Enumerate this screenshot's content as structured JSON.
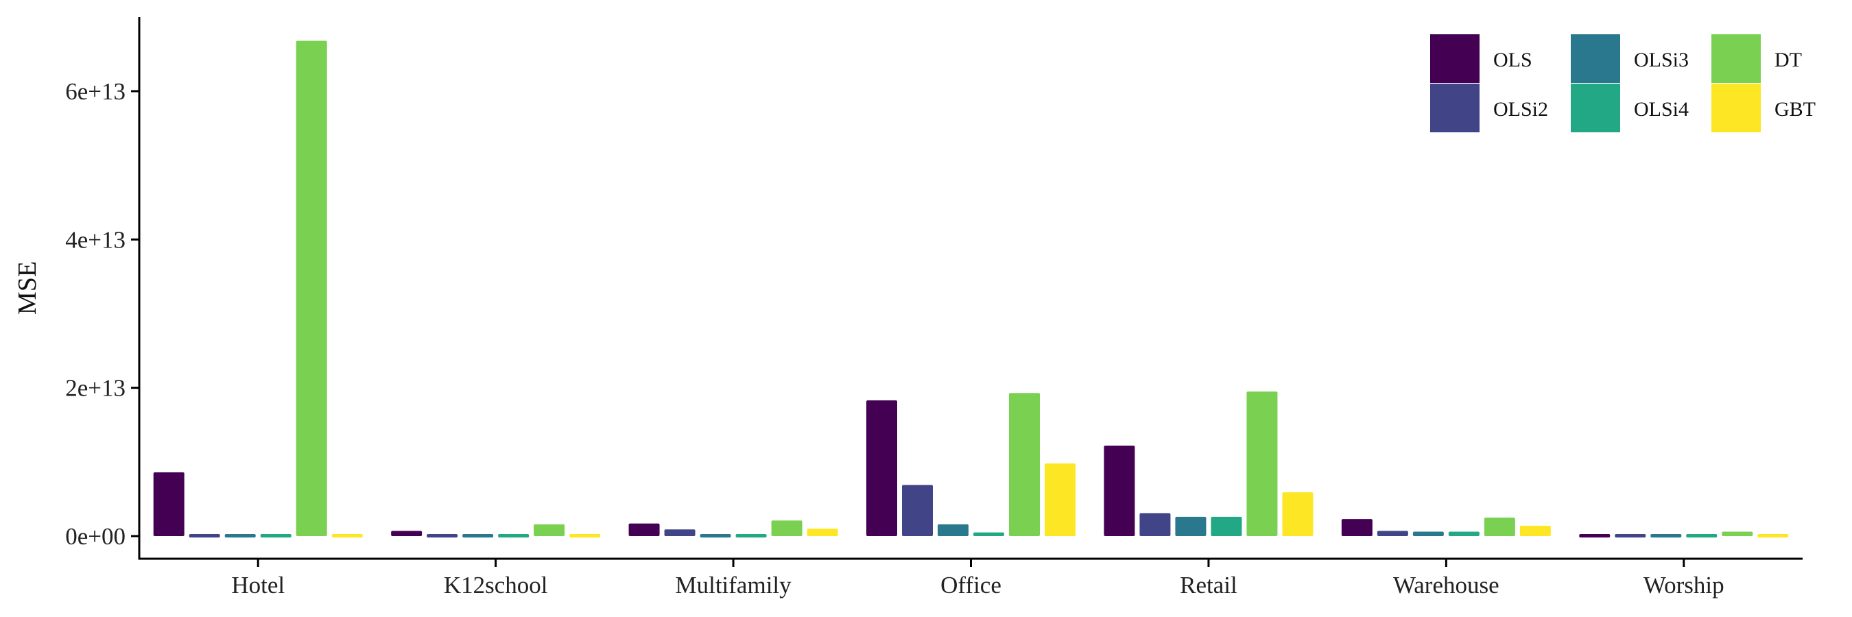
{
  "chart_data": {
    "type": "bar",
    "title": "",
    "xlabel": "",
    "ylabel": "MSE",
    "ylim": [
      0,
      70000000000000
    ],
    "yticks": [
      {
        "value": 0,
        "label": "0e+00"
      },
      {
        "value": 20000000000000,
        "label": "2e+13"
      },
      {
        "value": 40000000000000,
        "label": "4e+13"
      },
      {
        "value": 60000000000000,
        "label": "6e+13"
      }
    ],
    "grid": false,
    "legend_position": "top-right",
    "categories": [
      "Hotel",
      "K12school",
      "Multifamily",
      "Office",
      "Retail",
      "Warehouse",
      "Worship"
    ],
    "series": [
      {
        "name": "OLS",
        "color": "#440154",
        "values": [
          8600000000000.0,
          700000000000.0,
          1700000000000.0,
          18300000000000.0,
          12200000000000.0,
          2300000000000.0,
          300000000000.0
        ]
      },
      {
        "name": "OLSi2",
        "color": "#414487",
        "values": [
          200000000000.0,
          400000000000.0,
          900000000000.0,
          6900000000000.0,
          3100000000000.0,
          700000000000.0,
          200000000000.0
        ]
      },
      {
        "name": "OLSi3",
        "color": "#2a788e",
        "values": [
          200000000000.0,
          300000000000.0,
          400000000000.0,
          1600000000000.0,
          2600000000000.0,
          600000000000.0,
          200000000000.0
        ]
      },
      {
        "name": "OLSi4",
        "color": "#22a884",
        "values": [
          200000000000.0,
          300000000000.0,
          400000000000.0,
          500000000000.0,
          2600000000000.0,
          600000000000.0,
          200000000000.0
        ]
      },
      {
        "name": "DT",
        "color": "#7ad151",
        "values": [
          66800000000000.0,
          1600000000000.0,
          2100000000000.0,
          19300000000000.0,
          19500000000000.0,
          2500000000000.0,
          600000000000.0
        ]
      },
      {
        "name": "GBT",
        "color": "#fde725",
        "values": [
          200000000000.0,
          400000000000.0,
          1000000000000.0,
          9800000000000.0,
          5900000000000.0,
          1400000000000.0,
          300000000000.0
        ]
      }
    ]
  }
}
